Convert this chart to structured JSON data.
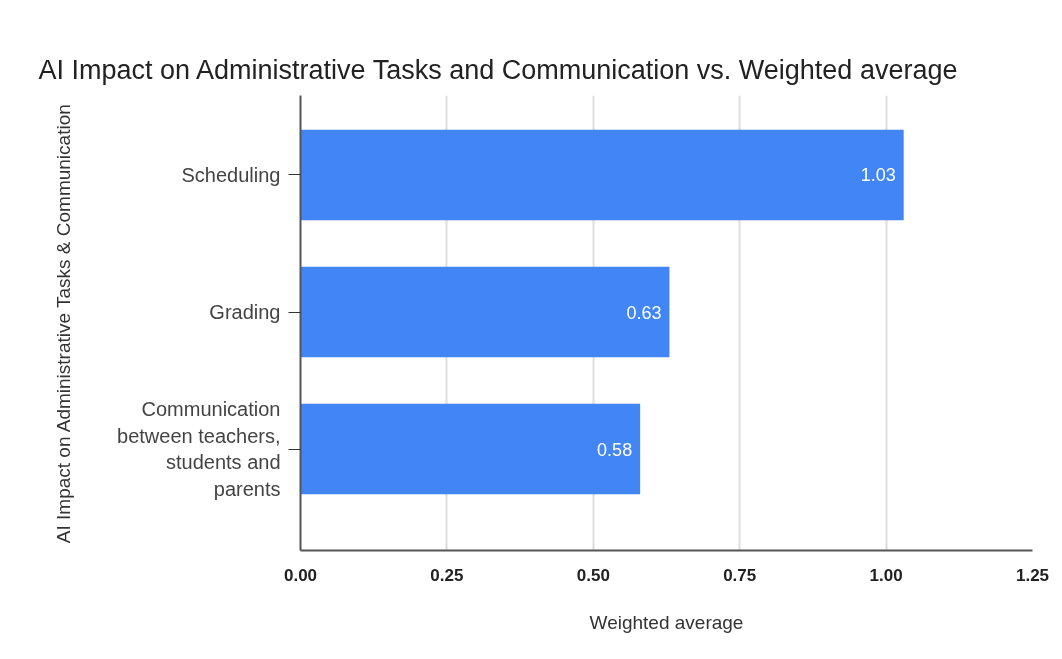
{
  "chart_data": {
    "type": "bar",
    "orientation": "horizontal",
    "title": "AI Impact on Administrative Tasks and Communication vs. Weighted average",
    "xlabel": "Weighted average",
    "ylabel": "AI Impact on Administrative Tasks & Communication",
    "categories": [
      "Scheduling",
      "Grading",
      "Communication between teachers, students and parents"
    ],
    "values": [
      1.03,
      0.63,
      0.58
    ],
    "color": "#4285f4",
    "xlim": [
      0,
      1.25
    ],
    "xticks": [
      {
        "value": 0,
        "label": "0.00"
      },
      {
        "value": 0.25,
        "label": "0.25"
      },
      {
        "value": 0.5,
        "label": "0.50"
      },
      {
        "value": 0.75,
        "label": "0.75"
      },
      {
        "value": 1,
        "label": "1.00"
      },
      {
        "value": 1.25,
        "label": "1.25"
      }
    ],
    "grid": "x",
    "data_labels": true
  }
}
